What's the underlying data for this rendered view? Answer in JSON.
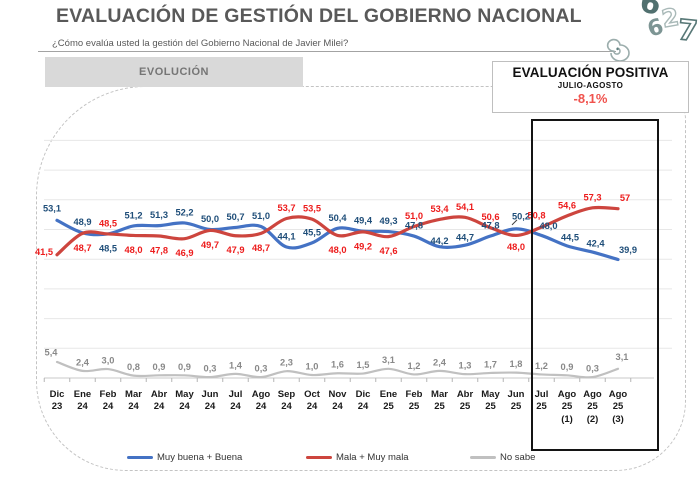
{
  "header": {
    "title": "EVALUACIÓN DE GESTIÓN DEL GOBIERNO NACIONAL",
    "subtitle": "¿Cómo evalúa usted la gestión del Gobierno Nacional de Javier Milei?"
  },
  "logo": {
    "chars": [
      "6",
      "2",
      "7",
      "6"
    ]
  },
  "tab": {
    "label": "EVOLUCIÓN"
  },
  "callout": {
    "title": "EVALUACIÓN POSITIVA",
    "subtitle": "JULIO-AGOSTO",
    "value": "-8,1%",
    "value_color": "#f0524d"
  },
  "chart_data": {
    "type": "line",
    "title": "EVALUACIÓN DE GESTIÓN DEL GOBIERNO NACIONAL",
    "xlabel": "",
    "ylabel": "",
    "ylim": [
      0,
      85
    ],
    "grid": true,
    "legend_position": "bottom",
    "smoothed_lines": true,
    "highlight_range": [
      "Jul 25",
      "Ago 25 (3)"
    ],
    "categories": [
      {
        "month": "Dic",
        "year": "23",
        "note": ""
      },
      {
        "month": "Ene",
        "year": "24",
        "note": ""
      },
      {
        "month": "Feb",
        "year": "24",
        "note": ""
      },
      {
        "month": "Mar",
        "year": "24",
        "note": ""
      },
      {
        "month": "Abr",
        "year": "24",
        "note": ""
      },
      {
        "month": "May",
        "year": "24",
        "note": ""
      },
      {
        "month": "Jun",
        "year": "24",
        "note": ""
      },
      {
        "month": "Jul",
        "year": "24",
        "note": ""
      },
      {
        "month": "Ago",
        "year": "24",
        "note": ""
      },
      {
        "month": "Sep",
        "year": "24",
        "note": ""
      },
      {
        "month": "Oct",
        "year": "24",
        "note": ""
      },
      {
        "month": "Nov",
        "year": "24",
        "note": ""
      },
      {
        "month": "Dic",
        "year": "24",
        "note": ""
      },
      {
        "month": "Ene",
        "year": "25",
        "note": ""
      },
      {
        "month": "Feb",
        "year": "25",
        "note": ""
      },
      {
        "month": "Mar",
        "year": "25",
        "note": ""
      },
      {
        "month": "Abr",
        "year": "25",
        "note": ""
      },
      {
        "month": "May",
        "year": "25",
        "note": ""
      },
      {
        "month": "Jun",
        "year": "25",
        "note": ""
      },
      {
        "month": "Jul",
        "year": "25",
        "note": ""
      },
      {
        "month": "Ago",
        "year": "25",
        "note": "(1)"
      },
      {
        "month": "Ago",
        "year": "25",
        "note": "(2)"
      },
      {
        "month": "Ago",
        "year": "25",
        "note": "(3)"
      }
    ],
    "series": [
      {
        "name": "Muy buena + Buena",
        "color": "#4472c4",
        "label_color": "#1f4e79",
        "values": [
          53.1,
          48.9,
          48.5,
          51.2,
          51.3,
          52.2,
          50.0,
          50.7,
          51.0,
          44.1,
          45.5,
          50.4,
          49.4,
          49.3,
          47.8,
          44.2,
          44.7,
          47.8,
          50.2,
          48.0,
          44.5,
          42.4,
          39.9
        ],
        "labels": [
          "53,1",
          "48,9",
          "48,5",
          "51,2",
          "51,3",
          "52,2",
          "50,0",
          "50,7",
          "51,0",
          "44,1",
          "45,5",
          "50,4",
          "49,4",
          "49,3",
          "47,8",
          "44,2",
          "44,7",
          "47,8",
          "50,2",
          "48,0",
          "44,5",
          "42,4",
          "39,9"
        ]
      },
      {
        "name": "Mala + Muy mala",
        "color": "#cd453e",
        "label_color": "#ed1c1c",
        "values": [
          41.5,
          48.7,
          48.5,
          48.0,
          47.8,
          46.9,
          49.7,
          47.9,
          48.7,
          53.7,
          53.5,
          48.0,
          49.2,
          47.6,
          51.0,
          53.4,
          54.1,
          50.6,
          48.0,
          50.8,
          54.6,
          57.3,
          57.0
        ],
        "labels": [
          "41,5",
          "48,7",
          "48,5",
          "48,0",
          "47,8",
          "46,9",
          "49,7",
          "47,9",
          "48,7",
          "53,7",
          "53,5",
          "48,0",
          "49,2",
          "47,6",
          "51,0",
          "53,4",
          "54,1",
          "50,6",
          "48,0",
          "50,8",
          "54,6",
          "57,3",
          "57"
        ]
      },
      {
        "name": "No sabe",
        "color": "#c0c0c0",
        "label_color": "#898989",
        "values": [
          5.4,
          2.4,
          3.0,
          0.8,
          0.9,
          0.9,
          0.3,
          1.4,
          0.3,
          2.3,
          1.0,
          1.6,
          1.5,
          3.1,
          1.2,
          2.4,
          1.3,
          1.7,
          1.8,
          1.2,
          0.9,
          0.3,
          3.1
        ],
        "labels": [
          "5,4",
          "2,4",
          "3,0",
          "0,8",
          "0,9",
          "0,9",
          "0,3",
          "1,4",
          "0,3",
          "2,3",
          "1,0",
          "1,6",
          "1,5",
          "3,1",
          "1,2",
          "2,4",
          "1,3",
          "1,7",
          "1,8",
          "1,2",
          "0,9",
          "0,3",
          "3,1"
        ]
      }
    ]
  }
}
